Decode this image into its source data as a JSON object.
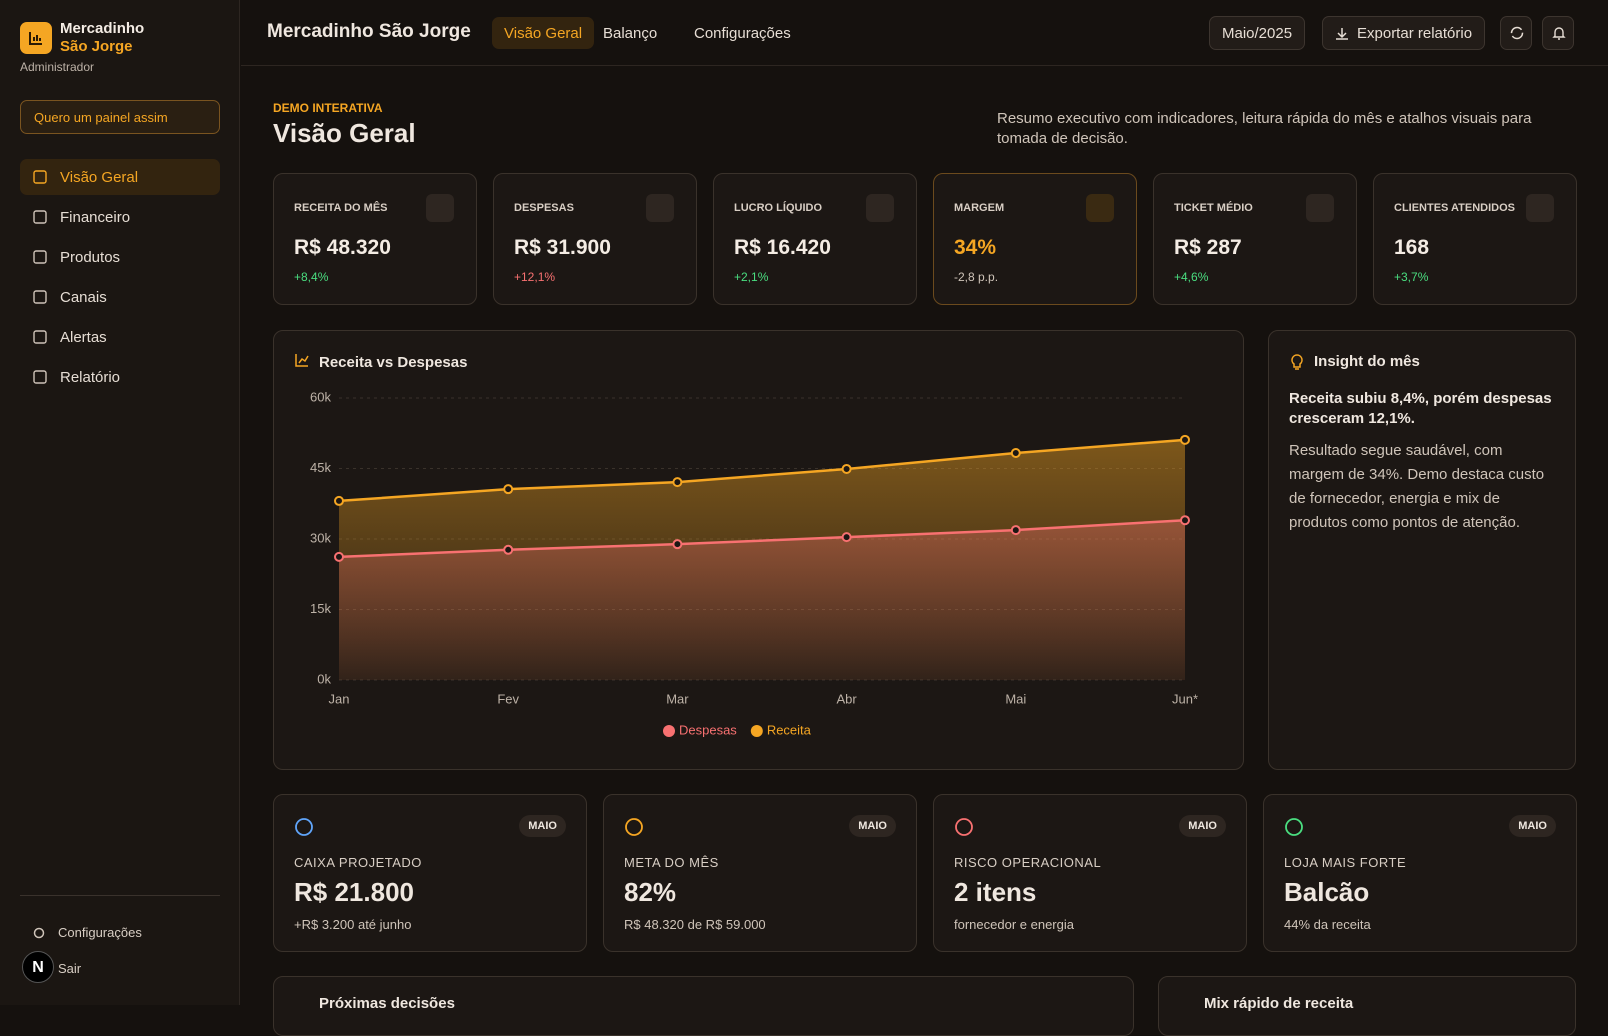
{
  "sidebar": {
    "brand_line1": "Mercadinho",
    "brand_line2": "São Jorge",
    "role": "Administrador",
    "cta": "Quero um painel assim",
    "nav": [
      "Visão Geral",
      "Financeiro",
      "Produtos",
      "Canais",
      "Alertas",
      "Relatório"
    ],
    "footer": [
      "Configurações",
      "Sair"
    ]
  },
  "topbar": {
    "title": "Mercadinho São Jorge",
    "tabs": [
      "Visão Geral",
      "Balanço",
      "Configurações"
    ],
    "period": "Maio/2025",
    "export": "Exportar relatório"
  },
  "header": {
    "eyebrow": "DEMO INTERATIVA",
    "title": "Visão Geral",
    "description": "Resumo executivo com indicadores, leitura rápida do mês e atalhos visuais para tomada de decisão."
  },
  "kpis": [
    {
      "label": "RECEITA DO MÊS",
      "value": "R$ 48.320",
      "change": "+8,4%"
    },
    {
      "label": "DESPESAS",
      "value": "R$ 31.900",
      "change": "+12,1%"
    },
    {
      "label": "LUCRO LÍQUIDO",
      "value": "R$ 16.420",
      "change": "+2,1%"
    },
    {
      "label": "MARGEM",
      "value": "34%",
      "change": "-2,8 p.p."
    },
    {
      "label": "TICKET MÉDIO",
      "value": "R$ 287",
      "change": "+4,6%"
    },
    {
      "label": "CLIENTES ATENDIDOS",
      "value": "168",
      "change": "+3,7%"
    }
  ],
  "chart": {
    "type": "area",
    "title": "Receita vs Despesas",
    "categories": [
      "Jan",
      "Fev",
      "Mar",
      "Abr",
      "Mai",
      "Jun*"
    ],
    "series": [
      {
        "name": "Despesas",
        "color": "#f87171",
        "values": [
          26200,
          27700,
          28900,
          30400,
          31900,
          34000
        ]
      },
      {
        "name": "Receita",
        "color": "#f5a623",
        "values": [
          38100,
          40600,
          42100,
          44900,
          48300,
          51100
        ]
      }
    ],
    "ylim": [
      0,
      60000
    ],
    "yticks": [
      {
        "value": 0,
        "label": "0k"
      },
      {
        "value": 15000,
        "label": "15k"
      },
      {
        "value": 30000,
        "label": "30k"
      },
      {
        "value": 45000,
        "label": "45k"
      },
      {
        "value": 60000,
        "label": "60k"
      }
    ],
    "grid": true
  },
  "insight": {
    "title": "Insight do mês",
    "headline": "Receita subiu 8,4%, porém despesas cresceram 12,1%.",
    "body": "Resultado segue saudável, com margem de 34%. Demo destaca custo de fornecedor, energia e mix de produtos como pontos de atenção."
  },
  "cards": [
    {
      "badge": "MAIO",
      "label": "CAIXA PROJETADO",
      "value": "R$ 21.800",
      "note": "+R$ 3.200 até junho"
    },
    {
      "badge": "MAIO",
      "label": "META DO MÊS",
      "value": "82%",
      "note": "R$ 48.320 de R$ 59.000"
    },
    {
      "badge": "MAIO",
      "label": "RISCO OPERACIONAL",
      "value": "2 itens",
      "note": "fornecedor e energia"
    },
    {
      "badge": "MAIO",
      "label": "LOJA MAIS FORTE",
      "value": "Balcão",
      "note": "44% da receita"
    }
  ],
  "sections": [
    "Próximas decisões",
    "Mix rápido de receita"
  ]
}
